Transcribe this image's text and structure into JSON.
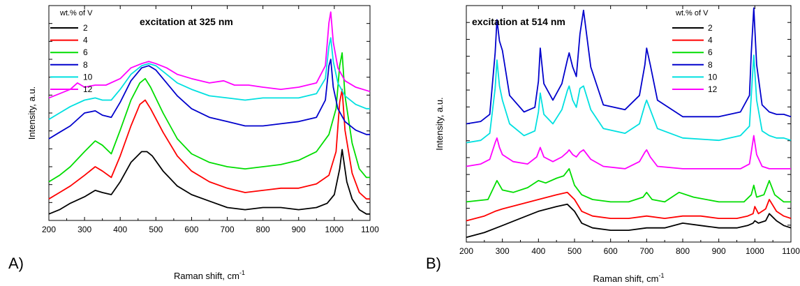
{
  "chart_data": [
    {
      "panel_label": "A)",
      "type": "line",
      "title": "excitation at 325 nm",
      "xlabel": "Raman shift, cm",
      "xlabel_sup": "-1",
      "ylabel": "Intensity, a.u.",
      "xlim": [
        200,
        1100
      ],
      "ylim": [
        0,
        1
      ],
      "y_ticklabels": "none",
      "grid": false,
      "legend_title": "wt.% of V",
      "legend_position": "top-left",
      "x_ticks": [
        "200",
        "300",
        "400",
        "500",
        "600",
        "700",
        "800",
        "900",
        "1000",
        "1100"
      ],
      "series": [
        {
          "name": "2",
          "color": "#000000",
          "x": [
            200,
            230,
            260,
            300,
            330,
            350,
            375,
            400,
            430,
            460,
            475,
            490,
            520,
            560,
            600,
            650,
            700,
            750,
            800,
            850,
            900,
            950,
            980,
            1000,
            1015,
            1022,
            1035,
            1050,
            1070,
            1090,
            1100
          ],
          "y": [
            0.03,
            0.05,
            0.08,
            0.11,
            0.14,
            0.13,
            0.12,
            0.18,
            0.27,
            0.32,
            0.32,
            0.3,
            0.23,
            0.16,
            0.12,
            0.09,
            0.06,
            0.05,
            0.06,
            0.06,
            0.05,
            0.06,
            0.08,
            0.12,
            0.24,
            0.33,
            0.18,
            0.1,
            0.05,
            0.03,
            0.03
          ]
        },
        {
          "name": "4",
          "color": "#ff0000",
          "x": [
            200,
            230,
            260,
            300,
            330,
            350,
            375,
            400,
            430,
            455,
            470,
            485,
            520,
            560,
            600,
            650,
            700,
            750,
            800,
            850,
            900,
            950,
            985,
            1005,
            1015,
            1022,
            1030,
            1050,
            1070,
            1090,
            1100
          ],
          "y": [
            0.1,
            0.13,
            0.16,
            0.21,
            0.25,
            0.23,
            0.2,
            0.3,
            0.44,
            0.54,
            0.56,
            0.52,
            0.41,
            0.3,
            0.23,
            0.18,
            0.15,
            0.13,
            0.14,
            0.15,
            0.15,
            0.17,
            0.21,
            0.32,
            0.55,
            0.61,
            0.42,
            0.22,
            0.13,
            0.1,
            0.1
          ]
        },
        {
          "name": "6",
          "color": "#00dd00",
          "x": [
            200,
            230,
            260,
            300,
            330,
            350,
            375,
            400,
            430,
            455,
            470,
            485,
            520,
            560,
            600,
            650,
            700,
            750,
            800,
            850,
            900,
            950,
            985,
            1005,
            1015,
            1022,
            1030,
            1050,
            1070,
            1090,
            1100
          ],
          "y": [
            0.18,
            0.21,
            0.25,
            0.32,
            0.37,
            0.35,
            0.31,
            0.42,
            0.56,
            0.64,
            0.66,
            0.62,
            0.5,
            0.38,
            0.31,
            0.27,
            0.25,
            0.24,
            0.25,
            0.26,
            0.28,
            0.32,
            0.4,
            0.52,
            0.72,
            0.78,
            0.58,
            0.36,
            0.24,
            0.2,
            0.2
          ]
        },
        {
          "name": "8",
          "color": "#0000cc",
          "x": [
            200,
            230,
            260,
            300,
            330,
            350,
            375,
            400,
            430,
            460,
            480,
            500,
            530,
            560,
            600,
            650,
            700,
            750,
            800,
            850,
            900,
            950,
            975,
            985,
            990,
            997,
            1010,
            1030,
            1060,
            1090,
            1100
          ],
          "y": [
            0.38,
            0.41,
            0.44,
            0.5,
            0.51,
            0.49,
            0.48,
            0.55,
            0.65,
            0.71,
            0.72,
            0.7,
            0.64,
            0.58,
            0.52,
            0.48,
            0.46,
            0.44,
            0.44,
            0.45,
            0.46,
            0.48,
            0.56,
            0.72,
            0.75,
            0.62,
            0.52,
            0.46,
            0.42,
            0.4,
            0.4
          ]
        },
        {
          "name": "10",
          "color": "#00e0e0",
          "x": [
            200,
            230,
            260,
            300,
            330,
            350,
            375,
            400,
            430,
            460,
            480,
            500,
            530,
            560,
            600,
            650,
            700,
            750,
            800,
            850,
            900,
            950,
            975,
            985,
            990,
            997,
            1010,
            1030,
            1060,
            1090,
            1100
          ],
          "y": [
            0.47,
            0.5,
            0.53,
            0.56,
            0.57,
            0.56,
            0.56,
            0.61,
            0.68,
            0.72,
            0.73,
            0.72,
            0.68,
            0.64,
            0.61,
            0.58,
            0.57,
            0.56,
            0.57,
            0.57,
            0.57,
            0.59,
            0.66,
            0.81,
            0.85,
            0.74,
            0.64,
            0.58,
            0.54,
            0.52,
            0.52
          ]
        },
        {
          "name": "12",
          "color": "#ff00ff",
          "x": [
            200,
            230,
            260,
            280,
            300,
            330,
            360,
            400,
            430,
            460,
            480,
            500,
            530,
            560,
            600,
            650,
            690,
            720,
            760,
            800,
            850,
            900,
            950,
            975,
            985,
            990,
            997,
            1010,
            1030,
            1060,
            1100
          ],
          "y": [
            0.57,
            0.59,
            0.61,
            0.64,
            0.62,
            0.63,
            0.63,
            0.66,
            0.71,
            0.73,
            0.74,
            0.73,
            0.71,
            0.68,
            0.66,
            0.64,
            0.65,
            0.63,
            0.63,
            0.62,
            0.61,
            0.62,
            0.64,
            0.72,
            0.92,
            0.97,
            0.83,
            0.71,
            0.65,
            0.62,
            0.6
          ]
        }
      ]
    },
    {
      "panel_label": "B)",
      "type": "line",
      "title": "excitation at 514 nm",
      "xlabel": "Raman shift, cm",
      "xlabel_sup": "-1",
      "ylabel": "Intensity, a.u.",
      "xlim": [
        200,
        1100
      ],
      "ylim": [
        0,
        1
      ],
      "y_ticklabels": "none",
      "grid": false,
      "legend_title": "wt.% of V",
      "legend_position": "top-right",
      "x_ticks": [
        "200",
        "300",
        "400",
        "500",
        "600",
        "700",
        "800",
        "900",
        "1000",
        "1100"
      ],
      "series": [
        {
          "name": "2",
          "color": "#000000",
          "x": [
            200,
            250,
            300,
            350,
            400,
            450,
            480,
            500,
            520,
            550,
            600,
            650,
            700,
            750,
            800,
            850,
            900,
            950,
            980,
            995,
            1000,
            1010,
            1030,
            1040,
            1060,
            1080,
            1100
          ],
          "y": [
            0.02,
            0.04,
            0.07,
            0.1,
            0.13,
            0.15,
            0.16,
            0.13,
            0.08,
            0.06,
            0.05,
            0.05,
            0.06,
            0.06,
            0.08,
            0.07,
            0.06,
            0.06,
            0.07,
            0.08,
            0.09,
            0.08,
            0.09,
            0.12,
            0.09,
            0.07,
            0.06
          ]
        },
        {
          "name": "4",
          "color": "#ff0000",
          "x": [
            200,
            250,
            280,
            300,
            350,
            400,
            450,
            480,
            500,
            520,
            550,
            600,
            650,
            700,
            750,
            800,
            850,
            900,
            950,
            980,
            995,
            1000,
            1010,
            1030,
            1040,
            1060,
            1080,
            1100
          ],
          "y": [
            0.09,
            0.11,
            0.13,
            0.14,
            0.16,
            0.18,
            0.2,
            0.21,
            0.18,
            0.13,
            0.11,
            0.1,
            0.1,
            0.11,
            0.1,
            0.11,
            0.11,
            0.1,
            0.1,
            0.11,
            0.12,
            0.15,
            0.12,
            0.14,
            0.18,
            0.13,
            0.11,
            0.1
          ]
        },
        {
          "name": "6",
          "color": "#00dd00",
          "x": [
            200,
            260,
            285,
            300,
            330,
            370,
            400,
            420,
            450,
            470,
            485,
            500,
            520,
            550,
            600,
            650,
            690,
            700,
            715,
            750,
            790,
            830,
            900,
            970,
            990,
            997,
            1005,
            1025,
            1040,
            1055,
            1080,
            1100
          ],
          "y": [
            0.17,
            0.18,
            0.26,
            0.22,
            0.21,
            0.23,
            0.26,
            0.25,
            0.27,
            0.28,
            0.31,
            0.24,
            0.2,
            0.18,
            0.17,
            0.17,
            0.19,
            0.21,
            0.18,
            0.17,
            0.21,
            0.19,
            0.17,
            0.17,
            0.2,
            0.24,
            0.19,
            0.2,
            0.26,
            0.2,
            0.17,
            0.17
          ]
        },
        {
          "name": "8",
          "color": "#0000cc",
          "x": [
            200,
            240,
            265,
            280,
            285,
            292,
            300,
            320,
            360,
            390,
            400,
            405,
            415,
            440,
            465,
            480,
            485,
            495,
            505,
            515,
            525,
            545,
            580,
            640,
            680,
            695,
            700,
            710,
            730,
            800,
            900,
            960,
            985,
            990,
            997,
            1005,
            1020,
            1040,
            1060,
            1080,
            1100
          ],
          "y": [
            0.5,
            0.51,
            0.54,
            0.8,
            0.94,
            0.85,
            0.81,
            0.62,
            0.55,
            0.57,
            0.68,
            0.82,
            0.67,
            0.6,
            0.67,
            0.77,
            0.8,
            0.74,
            0.7,
            0.88,
            0.98,
            0.74,
            0.58,
            0.56,
            0.62,
            0.75,
            0.82,
            0.75,
            0.6,
            0.53,
            0.53,
            0.55,
            0.62,
            0.8,
            0.99,
            0.75,
            0.58,
            0.55,
            0.54,
            0.54,
            0.53
          ]
        },
        {
          "name": "10",
          "color": "#00e0e0",
          "x": [
            200,
            240,
            265,
            280,
            285,
            292,
            300,
            320,
            360,
            390,
            400,
            405,
            415,
            440,
            465,
            480,
            485,
            495,
            505,
            515,
            525,
            545,
            580,
            640,
            680,
            695,
            700,
            710,
            730,
            800,
            900,
            960,
            985,
            990,
            997,
            1005,
            1020,
            1040,
            1060,
            1080,
            1100
          ],
          "y": [
            0.42,
            0.43,
            0.46,
            0.65,
            0.77,
            0.66,
            0.6,
            0.5,
            0.45,
            0.47,
            0.55,
            0.63,
            0.54,
            0.5,
            0.56,
            0.64,
            0.66,
            0.6,
            0.57,
            0.65,
            0.66,
            0.56,
            0.48,
            0.46,
            0.5,
            0.58,
            0.6,
            0.56,
            0.48,
            0.44,
            0.43,
            0.45,
            0.49,
            0.62,
            0.79,
            0.6,
            0.47,
            0.45,
            0.44,
            0.44,
            0.43
          ]
        },
        {
          "name": "12",
          "color": "#ff00ff",
          "x": [
            200,
            240,
            265,
            280,
            285,
            292,
            300,
            330,
            370,
            395,
            405,
            415,
            440,
            465,
            480,
            485,
            495,
            505,
            515,
            525,
            545,
            580,
            640,
            680,
            695,
            700,
            710,
            730,
            800,
            900,
            960,
            985,
            990,
            997,
            1005,
            1020,
            1040,
            1060,
            1080,
            1100
          ],
          "y": [
            0.32,
            0.33,
            0.35,
            0.42,
            0.44,
            0.4,
            0.37,
            0.34,
            0.33,
            0.36,
            0.4,
            0.36,
            0.34,
            0.36,
            0.38,
            0.39,
            0.37,
            0.36,
            0.38,
            0.39,
            0.35,
            0.32,
            0.31,
            0.34,
            0.38,
            0.39,
            0.36,
            0.32,
            0.31,
            0.31,
            0.31,
            0.33,
            0.38,
            0.45,
            0.37,
            0.32,
            0.31,
            0.31,
            0.31,
            0.31
          ]
        }
      ]
    }
  ]
}
